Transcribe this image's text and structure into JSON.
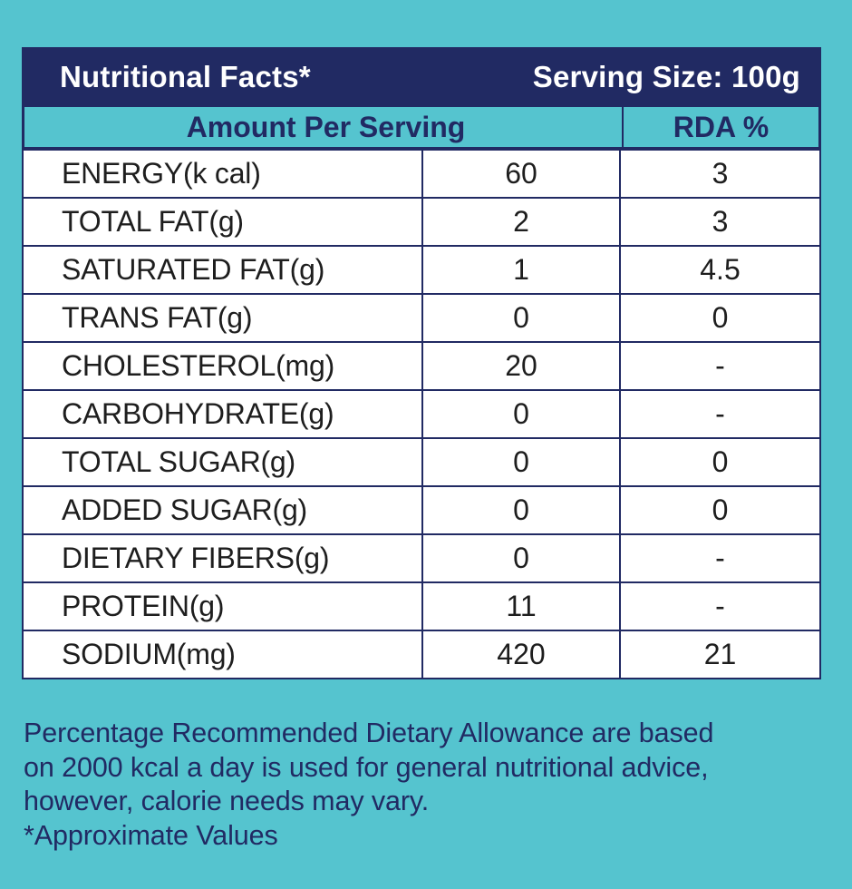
{
  "header": {
    "title": "Nutritional Facts*",
    "serving": "Serving Size: 100g"
  },
  "columns": {
    "amount": "Amount Per Serving",
    "rda": "RDA %"
  },
  "rows": [
    {
      "name": "ENERGY(k cal)",
      "amount": "60",
      "rda": "3"
    },
    {
      "name": "TOTAL FAT(g)",
      "amount": "2",
      "rda": "3"
    },
    {
      "name": "SATURATED FAT(g)",
      "amount": "1",
      "rda": "4.5"
    },
    {
      "name": "TRANS FAT(g)",
      "amount": "0",
      "rda": "0"
    },
    {
      "name": "CHOLESTEROL(mg)",
      "amount": "20",
      "rda": "-"
    },
    {
      "name": "CARBOHYDRATE(g)",
      "amount": "0",
      "rda": "-"
    },
    {
      "name": "TOTAL SUGAR(g)",
      "amount": "0",
      "rda": "0"
    },
    {
      "name": "ADDED SUGAR(g)",
      "amount": "0",
      "rda": "0"
    },
    {
      "name": "DIETARY FIBERS(g)",
      "amount": "0",
      "rda": "-"
    },
    {
      "name": "PROTEIN(g)",
      "amount": "11",
      "rda": "-"
    },
    {
      "name": "SODIUM(mg)",
      "amount": "420",
      "rda": "21"
    }
  ],
  "footnote": {
    "lines": [
      "Percentage Recommended Dietary Allowance are based",
      "on 2000 kcal a day is used for general nutritional advice,",
      "however, calorie needs may vary.",
      "*Approximate Values"
    ]
  },
  "colors": {
    "background": "#55c4cf",
    "navy": "#212a63",
    "cell": "#ffffff"
  }
}
